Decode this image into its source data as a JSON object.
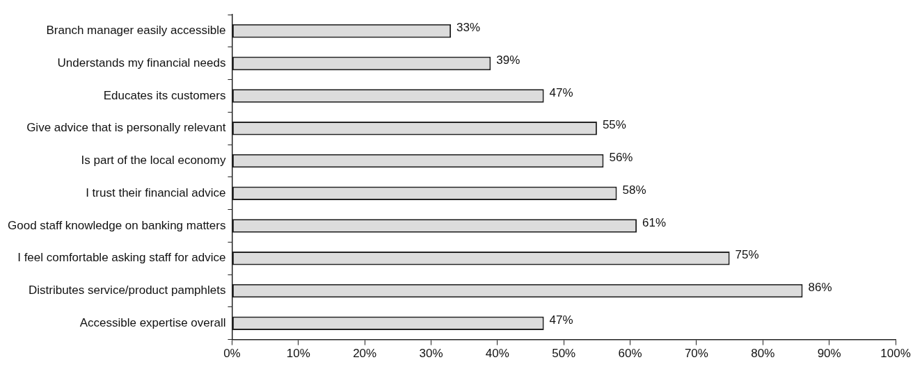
{
  "chart_data": {
    "type": "bar",
    "orientation": "horizontal",
    "categories": [
      "Branch manager easily accessible",
      "Understands my financial needs",
      "Educates its customers",
      "Give advice that is personally relevant",
      "Is part of the local economy",
      "I trust their financial advice",
      "Good staff knowledge on banking matters",
      "I feel comfortable asking staff for advice",
      "Distributes service/product pamphlets",
      "Accessible expertise overall"
    ],
    "values": [
      33,
      39,
      47,
      55,
      56,
      58,
      61,
      75,
      86,
      47
    ],
    "value_labels": [
      "33%",
      "39%",
      "47%",
      "55%",
      "56%",
      "58%",
      "61%",
      "75%",
      "86%",
      "47%"
    ],
    "color": "#dcdcdc",
    "xlim": [
      0,
      100
    ],
    "xticks": [
      {
        "value": 0,
        "label": "0%"
      },
      {
        "value": 10,
        "label": "10%"
      },
      {
        "value": 20,
        "label": "20%"
      },
      {
        "value": 30,
        "label": "30%"
      },
      {
        "value": 40,
        "label": "40%"
      },
      {
        "value": 50,
        "label": "50%"
      },
      {
        "value": 60,
        "label": "60%"
      },
      {
        "value": 70,
        "label": "70%"
      },
      {
        "value": 80,
        "label": "80%"
      },
      {
        "value": 90,
        "label": "90%"
      },
      {
        "value": 100,
        "label": "100%"
      }
    ],
    "grid": false,
    "legend": false
  }
}
